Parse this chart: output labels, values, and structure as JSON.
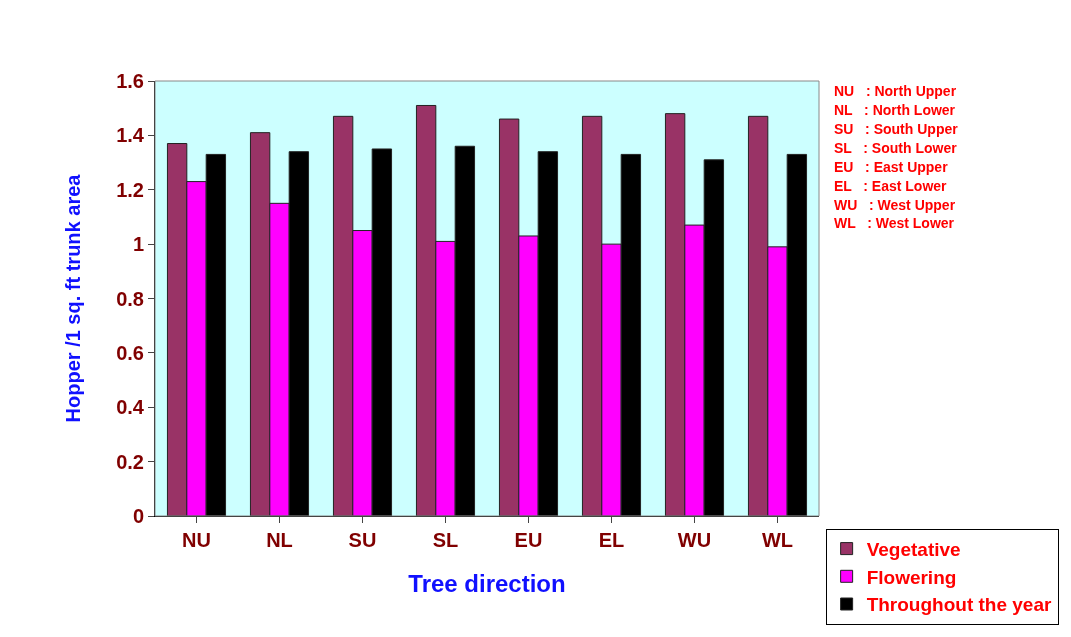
{
  "chart_data": {
    "type": "bar",
    "xlabel": "Tree direction",
    "ylabel": "Hopper /1 sq. ft trunk area",
    "categories": [
      "NU",
      "NL",
      "SU",
      "SL",
      "EU",
      "EL",
      "WU",
      "WL"
    ],
    "series": [
      {
        "name": "Vegetative",
        "color": "#993366",
        "values": [
          1.37,
          1.41,
          1.47,
          1.51,
          1.46,
          1.47,
          1.48,
          1.47
        ]
      },
      {
        "name": "Flowering",
        "color": "#ff00ff",
        "values": [
          1.23,
          1.15,
          1.05,
          1.01,
          1.03,
          1.0,
          1.07,
          0.99
        ]
      },
      {
        "name": "Throughout the year",
        "color": "#000000",
        "values": [
          1.33,
          1.34,
          1.35,
          1.36,
          1.34,
          1.33,
          1.31,
          1.33
        ]
      }
    ],
    "ylim": [
      0,
      1.6
    ],
    "yticks": [
      0,
      {
        "value": 0.2,
        "label": "0.2"
      },
      {
        "value": 0.4,
        "label": "0.4"
      },
      {
        "value": 0.6,
        "label": "0.6"
      },
      {
        "value": 0.8,
        "label": "0.8"
      },
      1,
      {
        "value": 1.2,
        "label": "1.2"
      },
      {
        "value": 1.4,
        "label": "1.4"
      },
      {
        "value": 1.6,
        "label": "1.6"
      }
    ],
    "grid": false,
    "legend": "bottom right",
    "annotations": [
      "NU   : North Upper",
      "NL   : North Lower",
      "SU   : South Upper",
      "SL   : South Lower",
      "EU   : East Upper",
      "EL   : East Lower",
      "WU   : West Upper",
      "WL   : West Lower"
    ]
  }
}
